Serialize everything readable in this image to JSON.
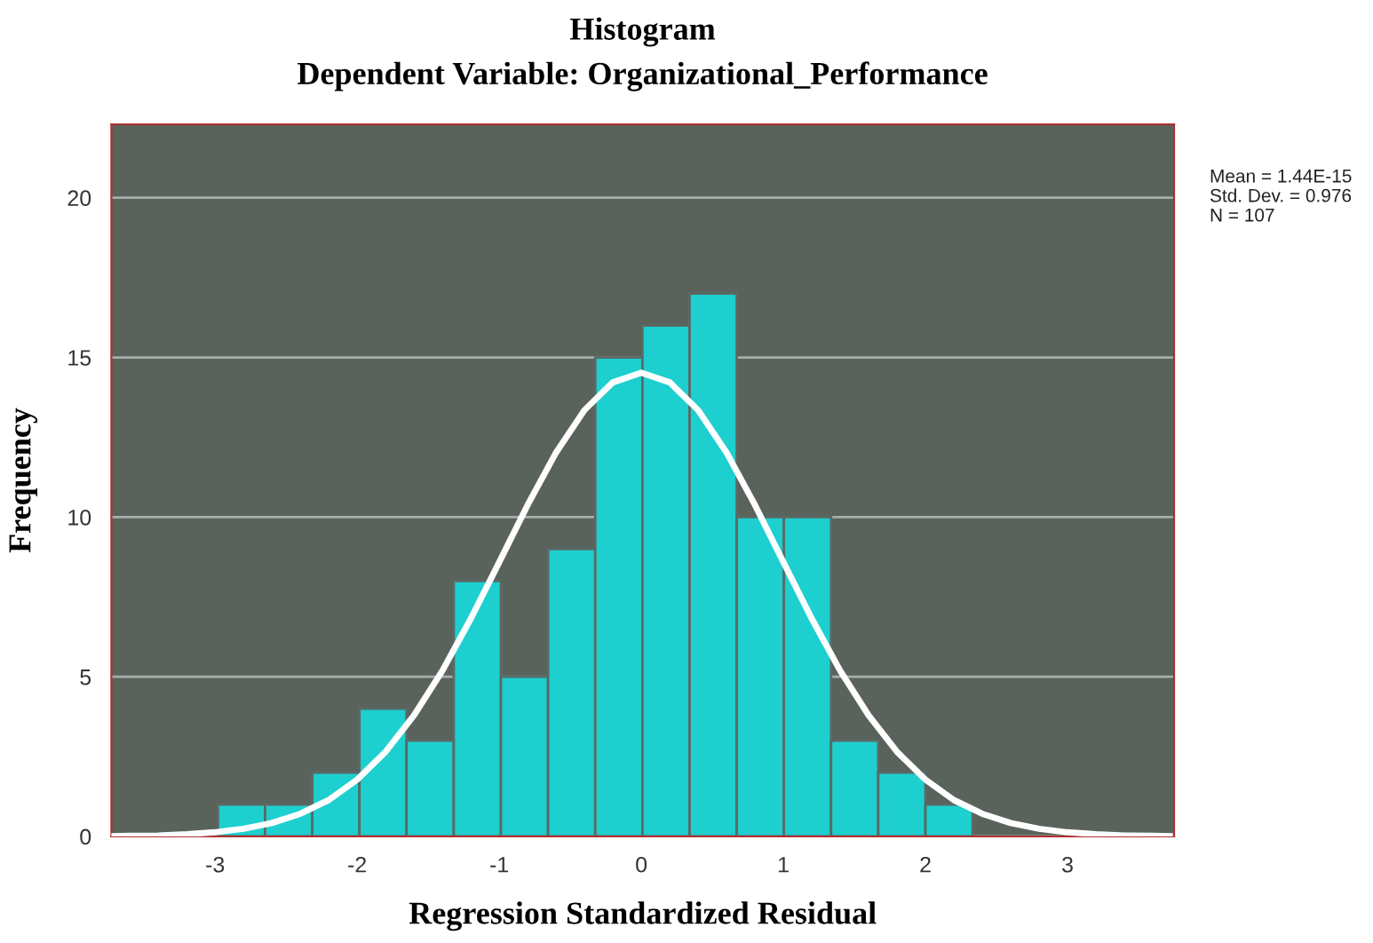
{
  "chart_data": {
    "type": "histogram",
    "title": "Histogram",
    "subtitle": "Dependent Variable: Organizational_Performance",
    "xlabel": "Regression Standardized Residual",
    "ylabel": "Frequency",
    "bins": [
      -2.98,
      -2.648,
      -2.316,
      -1.984,
      -1.652,
      -1.32,
      -0.988,
      -0.656,
      -0.324,
      0.008,
      0.34,
      0.672,
      1.004,
      1.336,
      1.668,
      2.0,
      2.332
    ],
    "values": [
      1,
      1,
      2,
      4,
      3,
      8,
      5,
      9,
      15,
      16,
      17,
      10,
      10,
      3,
      2,
      1
    ],
    "color": "#1ecfcf",
    "series": [
      {
        "type": "line",
        "color": "#ffffff",
        "x": [
          -3.72,
          -3.6,
          -3.4,
          -3.2,
          -3.0,
          -2.8,
          -2.6,
          -2.4,
          -2.2,
          -2.0,
          -1.8,
          -1.6,
          -1.4,
          -1.2,
          -1.0,
          -0.8,
          -0.6,
          -0.4,
          -0.2,
          0.0,
          0.2,
          0.4,
          0.6,
          0.8,
          1.0,
          1.2,
          1.4,
          1.6,
          1.8,
          2.0,
          2.2,
          2.4,
          2.6,
          2.8,
          3.0,
          3.2,
          3.4,
          3.6,
          3.72
        ],
        "values": [
          0.01,
          0.02,
          0.03,
          0.07,
          0.13,
          0.24,
          0.42,
          0.71,
          1.14,
          1.78,
          2.65,
          3.79,
          5.19,
          6.82,
          8.59,
          10.38,
          12.02,
          13.35,
          14.22,
          14.52,
          14.22,
          13.35,
          12.02,
          10.38,
          8.59,
          6.82,
          5.19,
          3.79,
          2.65,
          1.78,
          1.14,
          0.71,
          0.42,
          0.24,
          0.13,
          0.07,
          0.03,
          0.02,
          0.01
        ]
      }
    ],
    "xlim": [
      -3.73,
      3.75
    ],
    "xticks": [
      -3,
      -2,
      -1,
      0,
      1,
      2,
      3
    ],
    "ylim": [
      0,
      22.3
    ],
    "yticks": [
      0,
      5,
      10,
      15,
      20
    ],
    "grid": "y",
    "legend": false,
    "annotations": [
      "Mean = 1.44E-15",
      "Std. Dev. = 0.976",
      "N = 107"
    ]
  }
}
